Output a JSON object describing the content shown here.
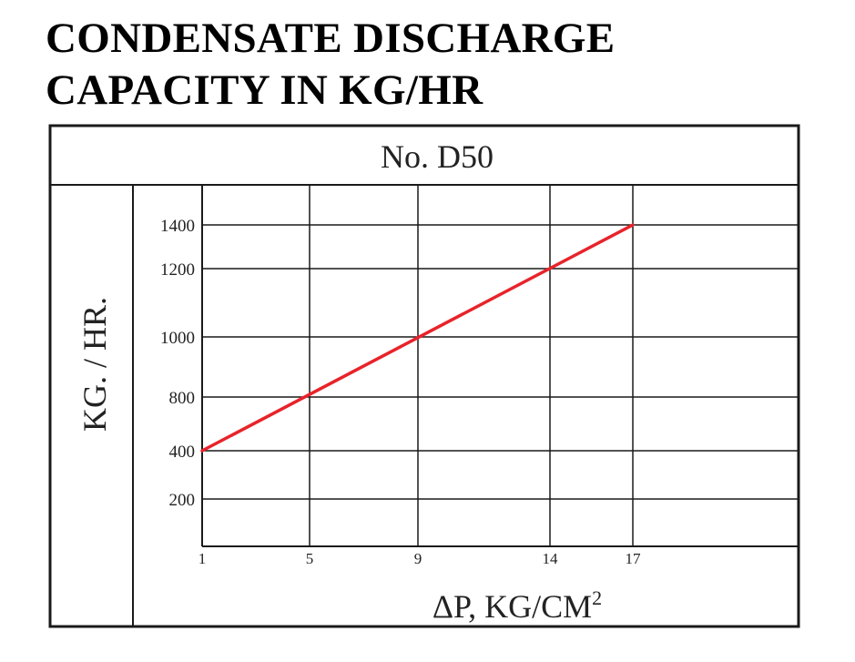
{
  "heading": {
    "line1": "CONDENSATE DISCHARGE",
    "line2": "CAPACITY IN KG/HR"
  },
  "chart_data": {
    "type": "line",
    "title": "No. D50",
    "ylabel": "KG. / HR.",
    "xlabel": "ΔP, KG/CM",
    "xlabel_superscript": "2",
    "x_ticks": [
      "1",
      "5",
      "9",
      "14",
      "17"
    ],
    "y_ticks": [
      "200",
      "400",
      "800",
      "1000",
      "1200",
      "1400"
    ],
    "grid": true,
    "series": [
      {
        "x": [
          1,
          5,
          9,
          14,
          17
        ],
        "y": [
          400,
          800,
          1000,
          1200,
          1400
        ]
      }
    ],
    "colors": {
      "line": "#e8232a",
      "frame": "#1a1a1a"
    }
  }
}
